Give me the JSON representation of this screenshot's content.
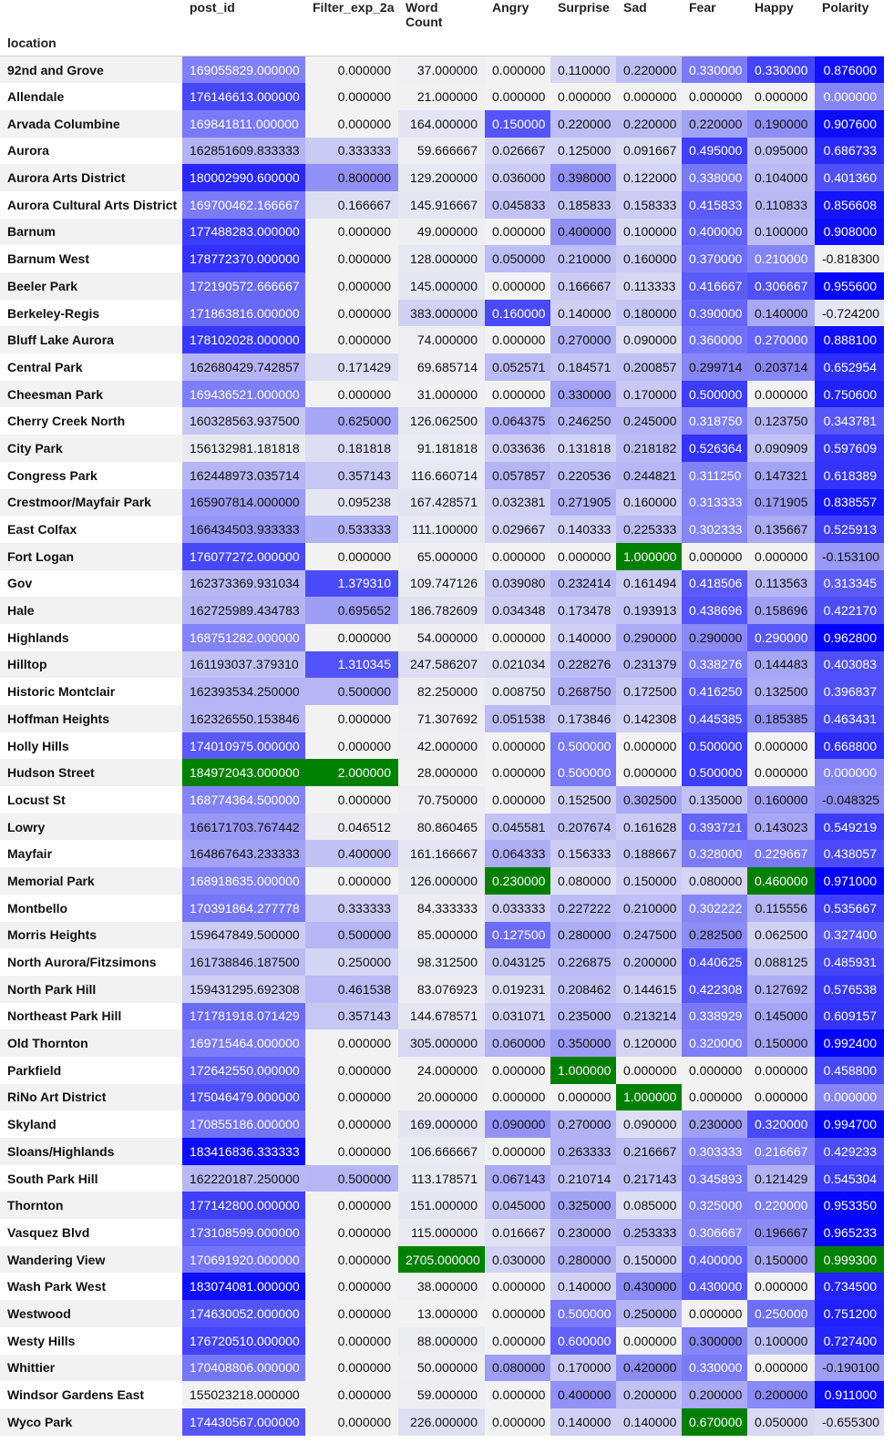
{
  "table": {
    "index_name": "location",
    "columns": [
      "post_id",
      "Filter_exp_2a",
      "Word Count",
      "Angry",
      "Surprise",
      "Sad",
      "Fear",
      "Happy",
      "Polarity"
    ],
    "column_colors": {
      "post_id": {
        "min": 155023218.0,
        "max": 184972043.0,
        "max_color": "#008000",
        "scale": "blue"
      },
      "Filter_exp_2a": {
        "min": 0.0,
        "max": 2.0,
        "max_color": "#008000",
        "scale": "blue"
      },
      "Word Count": {
        "min": 13.0,
        "max": 2705.0,
        "max_color": "#008000",
        "scale": "blue"
      },
      "Angry": {
        "min": 0.0,
        "max": 0.23,
        "max_color": "#008000",
        "scale": "blue"
      },
      "Surprise": {
        "min": 0.0,
        "max": 1.0,
        "max_color": "#008000",
        "scale": "blue"
      },
      "Sad": {
        "min": 0.0,
        "max": 1.0,
        "max_color": "#008000",
        "scale": "blue"
      },
      "Fear": {
        "min": 0.0,
        "max": 0.67,
        "max_color": "#008000",
        "scale": "blue"
      },
      "Happy": {
        "min": 0.0,
        "max": 0.46,
        "max_color": "#008000",
        "scale": "blue"
      },
      "Polarity": {
        "min": -0.8183,
        "max": 0.9993,
        "max_color": "#008000",
        "scale": "blue"
      }
    },
    "rows": [
      {
        "location": "92nd and Grove",
        "values": [
          "169055829.000000",
          "0.000000",
          "37.000000",
          "0.000000",
          "0.110000",
          "0.220000",
          "0.330000",
          "0.330000",
          "0.876000"
        ]
      },
      {
        "location": "Allendale",
        "values": [
          "176146613.000000",
          "0.000000",
          "21.000000",
          "0.000000",
          "0.000000",
          "0.000000",
          "0.000000",
          "0.000000",
          "0.000000"
        ]
      },
      {
        "location": "Arvada Columbine",
        "values": [
          "169841811.000000",
          "0.000000",
          "164.000000",
          "0.150000",
          "0.220000",
          "0.220000",
          "0.220000",
          "0.190000",
          "0.907600"
        ]
      },
      {
        "location": "Aurora",
        "values": [
          "162851609.833333",
          "0.333333",
          "59.666667",
          "0.026667",
          "0.125000",
          "0.091667",
          "0.495000",
          "0.095000",
          "0.686733"
        ]
      },
      {
        "location": "Aurora Arts District",
        "values": [
          "180002990.600000",
          "0.800000",
          "129.200000",
          "0.036000",
          "0.398000",
          "0.122000",
          "0.338000",
          "0.104000",
          "0.401360"
        ]
      },
      {
        "location": "Aurora Cultural Arts District",
        "values": [
          "169700462.166667",
          "0.166667",
          "145.916667",
          "0.045833",
          "0.185833",
          "0.158333",
          "0.415833",
          "0.110833",
          "0.856608"
        ]
      },
      {
        "location": "Barnum",
        "values": [
          "177488283.000000",
          "0.000000",
          "49.000000",
          "0.000000",
          "0.400000",
          "0.100000",
          "0.400000",
          "0.100000",
          "0.908000"
        ]
      },
      {
        "location": "Barnum West",
        "values": [
          "178772370.000000",
          "0.000000",
          "128.000000",
          "0.050000",
          "0.210000",
          "0.160000",
          "0.370000",
          "0.210000",
          "-0.818300"
        ]
      },
      {
        "location": "Beeler Park",
        "values": [
          "172190572.666667",
          "0.000000",
          "145.000000",
          "0.000000",
          "0.166667",
          "0.113333",
          "0.416667",
          "0.306667",
          "0.955600"
        ]
      },
      {
        "location": "Berkeley-Regis",
        "values": [
          "171863816.000000",
          "0.000000",
          "383.000000",
          "0.160000",
          "0.140000",
          "0.180000",
          "0.390000",
          "0.140000",
          "-0.724200"
        ]
      },
      {
        "location": "Bluff Lake Aurora",
        "values": [
          "178102028.000000",
          "0.000000",
          "74.000000",
          "0.000000",
          "0.270000",
          "0.090000",
          "0.360000",
          "0.270000",
          "0.888100"
        ]
      },
      {
        "location": "Central Park",
        "values": [
          "162680429.742857",
          "0.171429",
          "69.685714",
          "0.052571",
          "0.184571",
          "0.200857",
          "0.299714",
          "0.203714",
          "0.652954"
        ]
      },
      {
        "location": "Cheesman Park",
        "values": [
          "169436521.000000",
          "0.000000",
          "31.000000",
          "0.000000",
          "0.330000",
          "0.170000",
          "0.500000",
          "0.000000",
          "0.750600"
        ]
      },
      {
        "location": "Cherry Creek North",
        "values": [
          "160328563.937500",
          "0.625000",
          "126.062500",
          "0.064375",
          "0.246250",
          "0.245000",
          "0.318750",
          "0.123750",
          "0.343781"
        ]
      },
      {
        "location": "City Park",
        "values": [
          "156132981.181818",
          "0.181818",
          "91.181818",
          "0.033636",
          "0.131818",
          "0.218182",
          "0.526364",
          "0.090909",
          "0.597609"
        ]
      },
      {
        "location": "Congress Park",
        "values": [
          "162448973.035714",
          "0.357143",
          "116.660714",
          "0.057857",
          "0.220536",
          "0.244821",
          "0.311250",
          "0.147321",
          "0.618389"
        ]
      },
      {
        "location": "Crestmoor/Mayfair Park",
        "values": [
          "165907814.000000",
          "0.095238",
          "167.428571",
          "0.032381",
          "0.271905",
          "0.160000",
          "0.313333",
          "0.171905",
          "0.838557"
        ]
      },
      {
        "location": "East Colfax",
        "values": [
          "166434503.933333",
          "0.533333",
          "111.100000",
          "0.029667",
          "0.140333",
          "0.225333",
          "0.302333",
          "0.135667",
          "0.525913"
        ]
      },
      {
        "location": "Fort Logan",
        "values": [
          "176077272.000000",
          "0.000000",
          "65.000000",
          "0.000000",
          "0.000000",
          "1.000000",
          "0.000000",
          "0.000000",
          "-0.153100"
        ]
      },
      {
        "location": "Gov",
        "values": [
          "162373369.931034",
          "1.379310",
          "109.747126",
          "0.039080",
          "0.232414",
          "0.161494",
          "0.418506",
          "0.113563",
          "0.313345"
        ]
      },
      {
        "location": "Hale",
        "values": [
          "162725989.434783",
          "0.695652",
          "186.782609",
          "0.034348",
          "0.173478",
          "0.193913",
          "0.438696",
          "0.158696",
          "0.422170"
        ]
      },
      {
        "location": "Highlands",
        "values": [
          "168751282.000000",
          "0.000000",
          "54.000000",
          "0.000000",
          "0.140000",
          "0.290000",
          "0.290000",
          "0.290000",
          "0.962800"
        ]
      },
      {
        "location": "Hilltop",
        "values": [
          "161193037.379310",
          "1.310345",
          "247.586207",
          "0.021034",
          "0.228276",
          "0.231379",
          "0.338276",
          "0.144483",
          "0.403083"
        ]
      },
      {
        "location": "Historic Montclair",
        "values": [
          "162393534.250000",
          "0.500000",
          "82.250000",
          "0.008750",
          "0.268750",
          "0.172500",
          "0.416250",
          "0.132500",
          "0.396837"
        ]
      },
      {
        "location": "Hoffman Heights",
        "values": [
          "162326550.153846",
          "0.000000",
          "71.307692",
          "0.051538",
          "0.173846",
          "0.142308",
          "0.445385",
          "0.185385",
          "0.463431"
        ]
      },
      {
        "location": "Holly Hills",
        "values": [
          "174010975.000000",
          "0.000000",
          "42.000000",
          "0.000000",
          "0.500000",
          "0.000000",
          "0.500000",
          "0.000000",
          "0.668800"
        ]
      },
      {
        "location": "Hudson Street",
        "values": [
          "184972043.000000",
          "2.000000",
          "28.000000",
          "0.000000",
          "0.500000",
          "0.000000",
          "0.500000",
          "0.000000",
          "0.000000"
        ]
      },
      {
        "location": "Locust St",
        "values": [
          "168774364.500000",
          "0.000000",
          "70.750000",
          "0.000000",
          "0.152500",
          "0.302500",
          "0.135000",
          "0.160000",
          "-0.048325"
        ]
      },
      {
        "location": "Lowry",
        "values": [
          "166171703.767442",
          "0.046512",
          "80.860465",
          "0.045581",
          "0.207674",
          "0.161628",
          "0.393721",
          "0.143023",
          "0.549219"
        ]
      },
      {
        "location": "Mayfair",
        "values": [
          "164867643.233333",
          "0.400000",
          "161.166667",
          "0.064333",
          "0.156333",
          "0.188667",
          "0.328000",
          "0.229667",
          "0.438057"
        ]
      },
      {
        "location": "Memorial Park",
        "values": [
          "168918635.000000",
          "0.000000",
          "126.000000",
          "0.230000",
          "0.080000",
          "0.150000",
          "0.080000",
          "0.460000",
          "0.971000"
        ]
      },
      {
        "location": "Montbello",
        "values": [
          "170391864.277778",
          "0.333333",
          "84.333333",
          "0.033333",
          "0.227222",
          "0.210000",
          "0.302222",
          "0.115556",
          "0.535667"
        ]
      },
      {
        "location": "Morris Heights",
        "values": [
          "159647849.500000",
          "0.500000",
          "85.000000",
          "0.127500",
          "0.280000",
          "0.247500",
          "0.282500",
          "0.062500",
          "0.327400"
        ]
      },
      {
        "location": "North Aurora/Fitzsimons",
        "values": [
          "161738846.187500",
          "0.250000",
          "98.312500",
          "0.043125",
          "0.226875",
          "0.200000",
          "0.440625",
          "0.088125",
          "0.485931"
        ]
      },
      {
        "location": "North Park Hill",
        "values": [
          "159431295.692308",
          "0.461538",
          "83.076923",
          "0.019231",
          "0.208462",
          "0.144615",
          "0.422308",
          "0.127692",
          "0.576538"
        ]
      },
      {
        "location": "Northeast Park Hill",
        "values": [
          "171781918.071429",
          "0.357143",
          "144.678571",
          "0.031071",
          "0.235000",
          "0.213214",
          "0.338929",
          "0.145000",
          "0.609157"
        ]
      },
      {
        "location": "Old Thornton",
        "values": [
          "169715464.000000",
          "0.000000",
          "305.000000",
          "0.060000",
          "0.350000",
          "0.120000",
          "0.320000",
          "0.150000",
          "0.992400"
        ]
      },
      {
        "location": "Parkfield",
        "values": [
          "172642550.000000",
          "0.000000",
          "24.000000",
          "0.000000",
          "1.000000",
          "0.000000",
          "0.000000",
          "0.000000",
          "0.458800"
        ]
      },
      {
        "location": "RiNo Art District",
        "values": [
          "175046479.000000",
          "0.000000",
          "20.000000",
          "0.000000",
          "0.000000",
          "1.000000",
          "0.000000",
          "0.000000",
          "0.000000"
        ]
      },
      {
        "location": "Skyland",
        "values": [
          "170855186.000000",
          "0.000000",
          "169.000000",
          "0.090000",
          "0.270000",
          "0.090000",
          "0.230000",
          "0.320000",
          "0.994700"
        ]
      },
      {
        "location": "Sloans/Highlands",
        "values": [
          "183416836.333333",
          "0.000000",
          "106.666667",
          "0.000000",
          "0.263333",
          "0.216667",
          "0.303333",
          "0.216667",
          "0.429233"
        ]
      },
      {
        "location": "South Park Hill",
        "values": [
          "162220187.250000",
          "0.500000",
          "113.178571",
          "0.067143",
          "0.210714",
          "0.217143",
          "0.345893",
          "0.121429",
          "0.545304"
        ]
      },
      {
        "location": "Thornton",
        "values": [
          "177142800.000000",
          "0.000000",
          "151.000000",
          "0.045000",
          "0.325000",
          "0.085000",
          "0.325000",
          "0.220000",
          "0.953350"
        ]
      },
      {
        "location": "Vasquez Blvd",
        "values": [
          "173108599.000000",
          "0.000000",
          "115.000000",
          "0.016667",
          "0.230000",
          "0.253333",
          "0.306667",
          "0.196667",
          "0.965233"
        ]
      },
      {
        "location": "Wandering View",
        "values": [
          "170691920.000000",
          "0.000000",
          "2705.000000",
          "0.030000",
          "0.280000",
          "0.150000",
          "0.400000",
          "0.150000",
          "0.999300"
        ]
      },
      {
        "location": "Wash Park West",
        "values": [
          "183074081.000000",
          "0.000000",
          "38.000000",
          "0.000000",
          "0.140000",
          "0.430000",
          "0.430000",
          "0.000000",
          "0.734500"
        ]
      },
      {
        "location": "Westwood",
        "values": [
          "174630052.000000",
          "0.000000",
          "13.000000",
          "0.000000",
          "0.500000",
          "0.250000",
          "0.000000",
          "0.250000",
          "0.751200"
        ]
      },
      {
        "location": "Westy Hills",
        "values": [
          "176720510.000000",
          "0.000000",
          "88.000000",
          "0.000000",
          "0.600000",
          "0.000000",
          "0.300000",
          "0.100000",
          "0.727400"
        ]
      },
      {
        "location": "Whittier",
        "values": [
          "170408806.000000",
          "0.000000",
          "50.000000",
          "0.080000",
          "0.170000",
          "0.420000",
          "0.330000",
          "0.000000",
          "-0.190100"
        ]
      },
      {
        "location": "Windsor Gardens East",
        "values": [
          "155023218.000000",
          "0.000000",
          "59.000000",
          "0.000000",
          "0.400000",
          "0.200000",
          "0.200000",
          "0.200000",
          "0.911000"
        ]
      },
      {
        "location": "Wyco Park",
        "values": [
          "174430567.000000",
          "0.000000",
          "226.000000",
          "0.000000",
          "0.140000",
          "0.140000",
          "0.670000",
          "0.050000",
          "-0.655300"
        ]
      }
    ]
  }
}
